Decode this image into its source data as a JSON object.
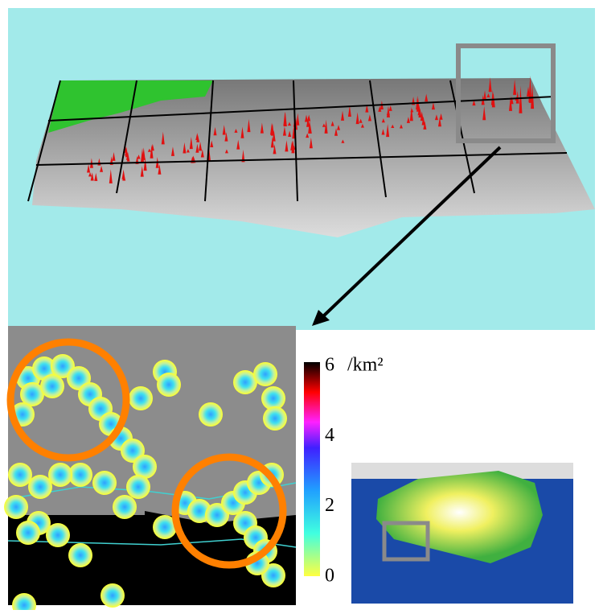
{
  "colorbar": {
    "ticks": [
      0,
      2,
      4,
      6
    ],
    "unit": "/km²"
  }
}
